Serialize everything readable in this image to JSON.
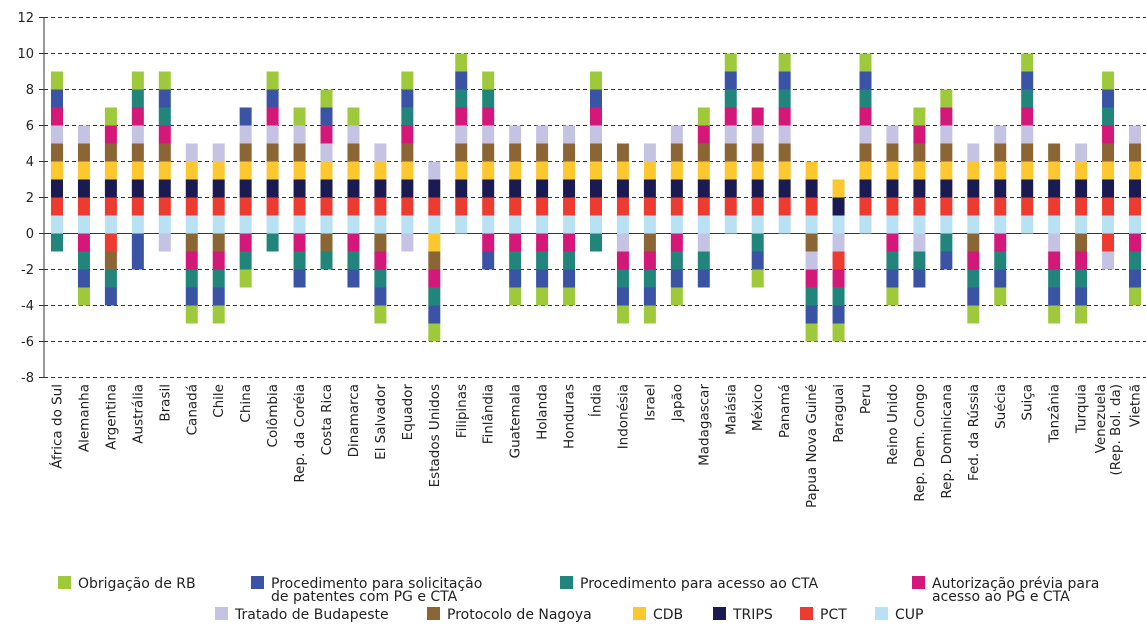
{
  "chart_data": {
    "type": "bar",
    "stacked": true,
    "ylim": [
      -8,
      12
    ],
    "yticks": [
      -8,
      -6,
      -4,
      -2,
      0,
      2,
      4,
      6,
      8,
      10,
      12
    ],
    "grid": "horizontal-dashed",
    "legend_placement": "bottom",
    "legend": [
      {
        "key": "RB",
        "lines": [
          "Obrigação de RB"
        ],
        "color": "#9dc93b"
      },
      {
        "key": "PAT",
        "lines": [
          "Procedimento para solicitação",
          "de patentes com PG e CTA"
        ],
        "color": "#3b53a4"
      },
      {
        "key": "ACTA",
        "lines": [
          "Procedimento para acesso ao CTA"
        ],
        "color": "#21857c"
      },
      {
        "key": "AUT",
        "lines": [
          "Autorização prévia para",
          "acesso ao PG e CTA"
        ],
        "color": "#d4187a"
      },
      {
        "key": "BUD",
        "lines": [
          "Tratado de Budapeste"
        ],
        "color": "#c5c3e4"
      },
      {
        "key": "NAG",
        "lines": [
          "Protocolo de Nagoya"
        ],
        "color": "#8b6534"
      },
      {
        "key": "CDB",
        "lines": [
          "CDB"
        ],
        "color": "#fdc82f"
      },
      {
        "key": "TRIPS",
        "lines": [
          "TRIPS"
        ],
        "color": "#1b1b54"
      },
      {
        "key": "PCT",
        "lines": [
          "PCT"
        ],
        "color": "#ed3b2f"
      },
      {
        "key": "CUP",
        "lines": [
          "CUP"
        ],
        "color": "#b8e2f4"
      }
    ],
    "categories": [
      {
        "label": "África do Sul",
        "pos": [
          "CUP",
          "PCT",
          "TRIPS",
          "CDB",
          "NAG",
          "BUD",
          "AUT",
          "PAT",
          "RB"
        ],
        "neg": [
          "ACTA"
        ]
      },
      {
        "label": "Alemanha",
        "pos": [
          "CUP",
          "PCT",
          "TRIPS",
          "CDB",
          "NAG",
          "BUD"
        ],
        "neg": [
          "AUT",
          "ACTA",
          "PAT",
          "RB"
        ]
      },
      {
        "label": "Argentina",
        "pos": [
          "CUP",
          "PCT",
          "TRIPS",
          "CDB",
          "NAG",
          "AUT",
          "RB"
        ],
        "neg": [
          "PCT",
          "NAG",
          "ACTA",
          "PAT"
        ]
      },
      {
        "label": "Austrália",
        "pos": [
          "CUP",
          "PCT",
          "TRIPS",
          "CDB",
          "NAG",
          "BUD",
          "AUT",
          "ACTA",
          "RB"
        ],
        "neg": [
          "PAT",
          "PAT"
        ]
      },
      {
        "label": "Brasil",
        "pos": [
          "CUP",
          "PCT",
          "TRIPS",
          "CDB",
          "NAG",
          "AUT",
          "ACTA",
          "PAT",
          "RB"
        ],
        "neg": [
          "BUD"
        ]
      },
      {
        "label": "Canadá",
        "pos": [
          "CUP",
          "PCT",
          "TRIPS",
          "CDB",
          "BUD"
        ],
        "neg": [
          "NAG",
          "AUT",
          "ACTA",
          "PAT",
          "RB"
        ]
      },
      {
        "label": "Chile",
        "pos": [
          "CUP",
          "PCT",
          "TRIPS",
          "CDB",
          "BUD"
        ],
        "neg": [
          "NAG",
          "AUT",
          "ACTA",
          "PAT",
          "RB"
        ]
      },
      {
        "label": "China",
        "pos": [
          "CUP",
          "PCT",
          "TRIPS",
          "CDB",
          "NAG",
          "BUD",
          "PAT"
        ],
        "neg": [
          "AUT",
          "ACTA",
          "RB"
        ]
      },
      {
        "label": "Colômbia",
        "pos": [
          "CUP",
          "PCT",
          "TRIPS",
          "CDB",
          "NAG",
          "BUD",
          "AUT",
          "PAT",
          "RB"
        ],
        "neg": [
          "ACTA"
        ]
      },
      {
        "label": "Rep. da Coréia",
        "pos": [
          "CUP",
          "PCT",
          "TRIPS",
          "CDB",
          "NAG",
          "BUD",
          "RB"
        ],
        "neg": [
          "AUT",
          "ACTA",
          "PAT"
        ]
      },
      {
        "label": "Costa Rica",
        "pos": [
          "CUP",
          "PCT",
          "TRIPS",
          "CDB",
          "BUD",
          "AUT",
          "PAT",
          "RB"
        ],
        "neg": [
          "NAG",
          "ACTA"
        ]
      },
      {
        "label": "Dinamarca",
        "pos": [
          "CUP",
          "PCT",
          "TRIPS",
          "CDB",
          "NAG",
          "BUD",
          "RB"
        ],
        "neg": [
          "AUT",
          "ACTA",
          "PAT"
        ]
      },
      {
        "label": "El Salvador",
        "pos": [
          "CUP",
          "PCT",
          "TRIPS",
          "CDB",
          "BUD"
        ],
        "neg": [
          "NAG",
          "AUT",
          "ACTA",
          "PAT",
          "RB"
        ]
      },
      {
        "label": "Equador",
        "pos": [
          "CUP",
          "PCT",
          "TRIPS",
          "CDB",
          "NAG",
          "AUT",
          "ACTA",
          "PAT",
          "RB"
        ],
        "neg": [
          "BUD"
        ]
      },
      {
        "label": "Estados Unidos",
        "pos": [
          "CUP",
          "PCT",
          "TRIPS",
          "BUD"
        ],
        "neg": [
          "CDB",
          "NAG",
          "AUT",
          "ACTA",
          "PAT",
          "RB"
        ]
      },
      {
        "label": "Filipinas",
        "pos": [
          "CUP",
          "PCT",
          "TRIPS",
          "CDB",
          "NAG",
          "BUD",
          "AUT",
          "ACTA",
          "PAT",
          "RB"
        ],
        "neg": []
      },
      {
        "label": "Finlândia",
        "pos": [
          "CUP",
          "PCT",
          "TRIPS",
          "CDB",
          "NAG",
          "BUD",
          "AUT",
          "ACTA",
          "RB"
        ],
        "neg": [
          "AUT",
          "PAT"
        ]
      },
      {
        "label": "Guatemala",
        "pos": [
          "CUP",
          "PCT",
          "TRIPS",
          "CDB",
          "NAG",
          "BUD"
        ],
        "neg": [
          "AUT",
          "ACTA",
          "PAT",
          "RB"
        ]
      },
      {
        "label": "Holanda",
        "pos": [
          "CUP",
          "PCT",
          "TRIPS",
          "CDB",
          "NAG",
          "BUD"
        ],
        "neg": [
          "AUT",
          "ACTA",
          "PAT",
          "RB"
        ]
      },
      {
        "label": "Honduras",
        "pos": [
          "CUP",
          "PCT",
          "TRIPS",
          "CDB",
          "NAG",
          "BUD"
        ],
        "neg": [
          "AUT",
          "ACTA",
          "PAT",
          "RB"
        ]
      },
      {
        "label": "Índia",
        "pos": [
          "CUP",
          "PCT",
          "TRIPS",
          "CDB",
          "NAG",
          "BUD",
          "AUT",
          "PAT",
          "RB"
        ],
        "neg": [
          "ACTA"
        ]
      },
      {
        "label": "Indonésia",
        "pos": [
          "CUP",
          "PCT",
          "TRIPS",
          "CDB",
          "NAG"
        ],
        "neg": [
          "BUD",
          "AUT",
          "ACTA",
          "PAT",
          "RB"
        ]
      },
      {
        "label": "Israel",
        "pos": [
          "CUP",
          "PCT",
          "TRIPS",
          "CDB",
          "BUD"
        ],
        "neg": [
          "NAG",
          "AUT",
          "ACTA",
          "PAT",
          "RB"
        ]
      },
      {
        "label": "Japão",
        "pos": [
          "CUP",
          "PCT",
          "TRIPS",
          "CDB",
          "NAG",
          "BUD"
        ],
        "neg": [
          "AUT",
          "ACTA",
          "PAT",
          "RB"
        ]
      },
      {
        "label": "Madagascar",
        "pos": [
          "CUP",
          "PCT",
          "TRIPS",
          "CDB",
          "NAG",
          "AUT",
          "RB"
        ],
        "neg": [
          "BUD",
          "ACTA",
          "PAT"
        ]
      },
      {
        "label": "Malásia",
        "pos": [
          "CUP",
          "PCT",
          "TRIPS",
          "CDB",
          "NAG",
          "BUD",
          "AUT",
          "ACTA",
          "PAT",
          "RB"
        ],
        "neg": []
      },
      {
        "label": "México",
        "pos": [
          "CUP",
          "PCT",
          "TRIPS",
          "CDB",
          "NAG",
          "BUD",
          "AUT"
        ],
        "neg": [
          "ACTA",
          "PAT",
          "RB"
        ]
      },
      {
        "label": "Panamá",
        "pos": [
          "CUP",
          "PCT",
          "TRIPS",
          "CDB",
          "NAG",
          "BUD",
          "AUT",
          "ACTA",
          "PAT",
          "RB"
        ],
        "neg": []
      },
      {
        "label": "Papua Nova Guiné",
        "pos": [
          "CUP",
          "PCT",
          "TRIPS",
          "CDB"
        ],
        "neg": [
          "NAG",
          "BUD",
          "AUT",
          "ACTA",
          "PAT",
          "RB"
        ]
      },
      {
        "label": "Paraguai",
        "pos": [
          "CUP",
          "TRIPS",
          "CDB"
        ],
        "neg": [
          "BUD",
          "PCT",
          "AUT",
          "ACTA",
          "PAT",
          "RB"
        ]
      },
      {
        "label": "Peru",
        "pos": [
          "CUP",
          "PCT",
          "TRIPS",
          "CDB",
          "NAG",
          "BUD",
          "AUT",
          "ACTA",
          "PAT",
          "RB"
        ],
        "neg": []
      },
      {
        "label": "Reino Unido",
        "pos": [
          "CUP",
          "PCT",
          "TRIPS",
          "CDB",
          "NAG",
          "BUD"
        ],
        "neg": [
          "AUT",
          "ACTA",
          "PAT",
          "RB"
        ]
      },
      {
        "label": "Rep. Dem. Congo",
        "pos": [
          "CUP",
          "PCT",
          "TRIPS",
          "CDB",
          "NAG",
          "AUT",
          "RB"
        ],
        "neg": [
          "BUD",
          "ACTA",
          "PAT"
        ]
      },
      {
        "label": "Rep. Dominicana",
        "pos": [
          "CUP",
          "PCT",
          "TRIPS",
          "CDB",
          "NAG",
          "BUD",
          "AUT",
          "RB"
        ],
        "neg": [
          "ACTA",
          "PAT"
        ]
      },
      {
        "label": "Fed. da Rússia",
        "pos": [
          "CUP",
          "PCT",
          "TRIPS",
          "CDB",
          "BUD"
        ],
        "neg": [
          "NAG",
          "AUT",
          "ACTA",
          "PAT",
          "RB"
        ]
      },
      {
        "label": "Suécia",
        "pos": [
          "CUP",
          "PCT",
          "TRIPS",
          "CDB",
          "NAG",
          "BUD"
        ],
        "neg": [
          "AUT",
          "ACTA",
          "PAT",
          "RB"
        ]
      },
      {
        "label": "Suiça",
        "pos": [
          "CUP",
          "PCT",
          "TRIPS",
          "CDB",
          "NAG",
          "BUD",
          "AUT",
          "ACTA",
          "PAT",
          "RB"
        ],
        "neg": []
      },
      {
        "label": "Tanzânia",
        "pos": [
          "CUP",
          "PCT",
          "TRIPS",
          "CDB",
          "NAG"
        ],
        "neg": [
          "BUD",
          "AUT",
          "ACTA",
          "PAT",
          "RB"
        ]
      },
      {
        "label": "Turquia",
        "pos": [
          "CUP",
          "PCT",
          "TRIPS",
          "CDB",
          "BUD"
        ],
        "neg": [
          "NAG",
          "AUT",
          "ACTA",
          "PAT",
          "RB"
        ]
      },
      {
        "label": "Venezuela (Rep. Bol. da)",
        "lines": [
          "Venezuela",
          "(Rep. Bol. da)"
        ],
        "pos": [
          "CUP",
          "PCT",
          "TRIPS",
          "CDB",
          "NAG",
          "AUT",
          "ACTA",
          "PAT",
          "RB"
        ],
        "neg": [
          "PCT",
          "BUD"
        ]
      },
      {
        "label": "Vietnã",
        "pos": [
          "CUP",
          "PCT",
          "TRIPS",
          "CDB",
          "NAG",
          "BUD"
        ],
        "neg": [
          "AUT",
          "ACTA",
          "PAT",
          "RB"
        ]
      }
    ]
  }
}
